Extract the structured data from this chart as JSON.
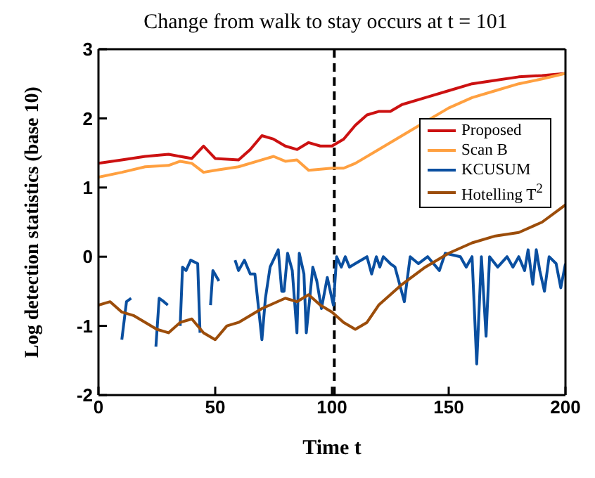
{
  "chart_data": {
    "type": "line",
    "title": "Change from walk to stay occurs at t = 101",
    "xlabel": "Time t",
    "ylabel": "Log detection statistics (base 10)",
    "xlim": [
      0,
      200
    ],
    "xticks": [
      0,
      50,
      100,
      150,
      200
    ],
    "ylim": [
      -2,
      3
    ],
    "yticks": [
      -2,
      -1,
      0,
      1,
      2,
      3
    ],
    "legend": "right",
    "marker": "none",
    "line_style": "solid",
    "ref_lines": [
      {
        "axis": "x",
        "value": 101,
        "color": "#000000",
        "line_style": "dashed"
      }
    ],
    "series": [
      {
        "name": "Proposed",
        "color": "#cc1111",
        "x": [
          0,
          10,
          20,
          30,
          40,
          45,
          50,
          60,
          65,
          70,
          75,
          80,
          85,
          90,
          95,
          100,
          105,
          110,
          115,
          120,
          125,
          130,
          140,
          150,
          160,
          170,
          180,
          190,
          200
        ],
        "values": [
          1.35,
          1.4,
          1.45,
          1.48,
          1.42,
          1.6,
          1.42,
          1.4,
          1.55,
          1.75,
          1.7,
          1.6,
          1.55,
          1.65,
          1.6,
          1.6,
          1.7,
          1.9,
          2.05,
          2.1,
          2.1,
          2.2,
          2.3,
          2.4,
          2.5,
          2.55,
          2.6,
          2.62,
          2.65
        ]
      },
      {
        "name": "Scan B",
        "color": "#ffa040",
        "x": [
          0,
          10,
          20,
          30,
          35,
          40,
          45,
          50,
          60,
          70,
          75,
          80,
          85,
          90,
          100,
          105,
          110,
          120,
          130,
          140,
          150,
          160,
          170,
          180,
          190,
          200
        ],
        "values": [
          1.15,
          1.22,
          1.3,
          1.32,
          1.38,
          1.35,
          1.22,
          1.25,
          1.3,
          1.4,
          1.45,
          1.38,
          1.4,
          1.25,
          1.28,
          1.28,
          1.35,
          1.55,
          1.75,
          1.95,
          2.15,
          2.3,
          2.4,
          2.5,
          2.57,
          2.65
        ]
      },
      {
        "name": "KCUSUM",
        "color": "#0a4fa0",
        "x": [
          10,
          12,
          14,
          15,
          24.6,
          26,
          28,
          29.7,
          30,
          35,
          36,
          37.5,
          39.5,
          42.5,
          43.5,
          45,
          48,
          49,
          51.6,
          53,
          58.5,
          60,
          62.5,
          65,
          67,
          70,
          71.5,
          73.5,
          77,
          78.5,
          79.5,
          81,
          83,
          85,
          86,
          88,
          89,
          91.8,
          93.5,
          95.5,
          98,
          100.6,
          102,
          104,
          105.7,
          107.5,
          110,
          115,
          117,
          119,
          120.5,
          122,
          125,
          127,
          131,
          133.5,
          137,
          141,
          146,
          148.5,
          155,
          157.5,
          160,
          162,
          164,
          166,
          167.5,
          171,
          175,
          177.5,
          180,
          182.5,
          184,
          186,
          187.5,
          189,
          191,
          193,
          196,
          198,
          200
        ],
        "values": [
          -1.2,
          -0.65,
          -0.6,
          null,
          -1.3,
          -0.6,
          -0.65,
          -0.7,
          null,
          -1.0,
          -0.15,
          -0.2,
          -0.05,
          -0.1,
          -1.1,
          null,
          -0.7,
          -0.2,
          -0.35,
          null,
          -0.05,
          -0.2,
          -0.05,
          -0.25,
          -0.25,
          -1.2,
          -0.6,
          -0.15,
          0.1,
          -0.5,
          -0.5,
          0.05,
          -0.2,
          -1.1,
          0.05,
          -0.25,
          -1.1,
          -0.15,
          -0.35,
          -0.75,
          -0.3,
          -0.7,
          0.0,
          -0.15,
          0.0,
          -0.15,
          -0.1,
          0.0,
          -0.25,
          0.0,
          -0.15,
          0.0,
          -0.1,
          -0.15,
          -0.65,
          0.0,
          -0.1,
          0.0,
          -0.2,
          0.05,
          0.0,
          -0.15,
          0.0,
          -1.55,
          0.0,
          -1.15,
          0.0,
          -0.15,
          0.0,
          -0.15,
          0.0,
          -0.2,
          0.1,
          -0.4,
          0.1,
          -0.2,
          -0.5,
          0.0,
          -0.1,
          -0.45,
          -0.1
        ]
      },
      {
        "name": "Hotelling T$^{2}$",
        "color": "#9c4d0a",
        "x": [
          0,
          5,
          10,
          15,
          25,
          30,
          35,
          40,
          45,
          50,
          55,
          60,
          70,
          80,
          85,
          90,
          95,
          100,
          105,
          110,
          115,
          120,
          130,
          140,
          150,
          160,
          170,
          180,
          190,
          200
        ],
        "values": [
          -0.7,
          -0.65,
          -0.8,
          -0.85,
          -1.05,
          -1.1,
          -0.95,
          -0.9,
          -1.1,
          -1.2,
          -1.0,
          -0.95,
          -0.75,
          -0.6,
          -0.65,
          -0.55,
          -0.7,
          -0.8,
          -0.95,
          -1.05,
          -0.95,
          -0.7,
          -0.4,
          -0.15,
          0.05,
          0.2,
          0.3,
          0.35,
          0.5,
          0.75
        ]
      }
    ]
  }
}
